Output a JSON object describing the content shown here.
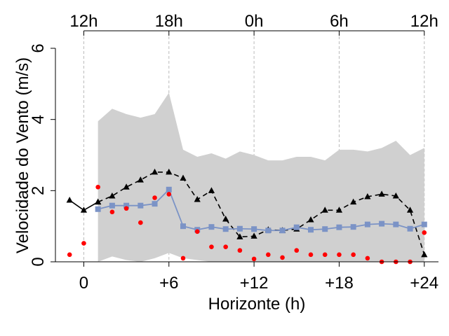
{
  "chart_data": {
    "type": "line",
    "xlabel": "Horizonte (h)",
    "ylabel": "Velocidade do Vento (m/s)",
    "xlim": [
      -2,
      25
    ],
    "ylim": [
      0,
      6
    ],
    "x_ticks": [
      0,
      6,
      12,
      18,
      24
    ],
    "x_tick_labels": [
      "0",
      "+6",
      "+12",
      "+18",
      "+24"
    ],
    "y_ticks": [
      0,
      2,
      4,
      6
    ],
    "y_tick_labels": [
      "0",
      "2",
      "4",
      "6"
    ],
    "top_axis_ticks": [
      0,
      6,
      12,
      18,
      24
    ],
    "top_axis_labels": [
      "12h",
      "18h",
      "0h",
      "6h",
      "12h"
    ],
    "vertical_gridlines_at": [
      0,
      6,
      12,
      18,
      24
    ],
    "colors": {
      "band": "#d0d0d0",
      "black_series": "#000000",
      "blue_series": "#7b93c6",
      "red_series": "#ff0000",
      "grid": "#bbbbbb"
    },
    "series": [
      {
        "kind": "band",
        "x": [
          1,
          2,
          3,
          4,
          5,
          6,
          7,
          8,
          9,
          10,
          11,
          12,
          13,
          14,
          15,
          16,
          17,
          18,
          19,
          20,
          21,
          22,
          23,
          24
        ],
        "upper": [
          3.95,
          4.3,
          4.15,
          4.05,
          4.15,
          4.75,
          3.15,
          2.95,
          3.05,
          2.9,
          3.1,
          3.0,
          2.85,
          2.85,
          2.95,
          2.95,
          2.85,
          3.15,
          3.15,
          3.1,
          3.2,
          3.4,
          3.0,
          3.2
        ],
        "lower": [
          0.0,
          0.15,
          0.05,
          0.0,
          0.1,
          0.25,
          0.1,
          0.05,
          0.0,
          0.0,
          0.0,
          0.0,
          0.0,
          0.0,
          0.0,
          0.0,
          0.0,
          0.0,
          0.0,
          0.0,
          0.0,
          0.0,
          0.0,
          0.0
        ]
      },
      {
        "kind": "black_solid_triangles",
        "x": [
          -1,
          0,
          1
        ],
        "values": [
          1.73,
          1.45,
          1.68
        ]
      },
      {
        "kind": "black_dashed_triangles",
        "x": [
          1,
          2,
          3,
          4,
          5,
          6,
          7,
          8,
          9,
          10,
          11,
          12,
          13,
          14,
          15,
          16,
          17,
          18,
          19,
          20,
          21,
          22,
          23,
          24
        ],
        "values": [
          1.68,
          1.85,
          2.1,
          2.3,
          2.52,
          2.52,
          2.35,
          1.75,
          2.0,
          1.2,
          0.7,
          0.72,
          0.9,
          0.88,
          0.92,
          1.18,
          1.45,
          1.45,
          1.68,
          1.83,
          1.9,
          1.85,
          1.45,
          0.2
        ]
      },
      {
        "kind": "blue_squares",
        "x": [
          1,
          2,
          3,
          4,
          5,
          6,
          7,
          8,
          9,
          10,
          11,
          12,
          13,
          14,
          15,
          16,
          17,
          18,
          19,
          20,
          21,
          22,
          23,
          24
        ],
        "values": [
          1.48,
          1.58,
          1.58,
          1.58,
          1.63,
          2.03,
          1.0,
          0.9,
          0.98,
          0.92,
          0.93,
          0.92,
          0.88,
          0.88,
          0.97,
          0.9,
          0.92,
          0.97,
          0.98,
          1.05,
          1.07,
          1.05,
          0.93,
          1.05
        ]
      },
      {
        "kind": "red_points",
        "x": [
          -1,
          0,
          1,
          2,
          3,
          4,
          5,
          6,
          7,
          8,
          9,
          10,
          11,
          12,
          13,
          14,
          15,
          16,
          17,
          18,
          19,
          20,
          21,
          22,
          23,
          24
        ],
        "values": [
          0.2,
          0.52,
          2.1,
          1.4,
          1.5,
          1.1,
          1.8,
          1.9,
          0.1,
          0.85,
          0.42,
          0.42,
          0.32,
          0.08,
          0.2,
          0.12,
          0.32,
          0.2,
          0.2,
          0.2,
          0.2,
          0.1,
          0.0,
          0.0,
          0.0,
          0.82
        ]
      }
    ]
  }
}
